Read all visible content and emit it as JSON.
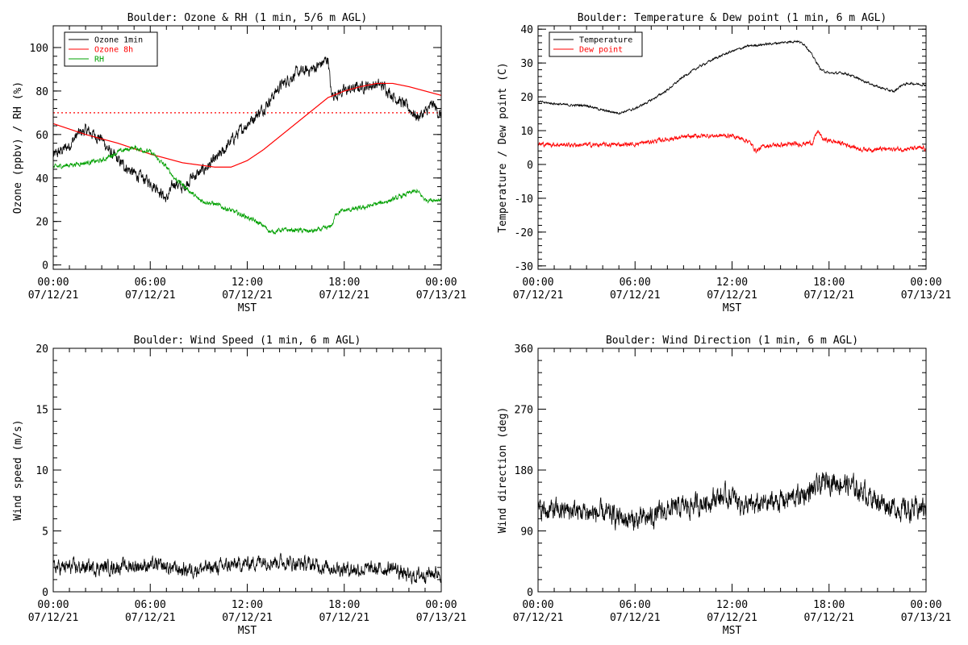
{
  "chart_data": [
    {
      "type": "line",
      "title": "Boulder: Ozone & RH (1 min, 5/6 m AGL)",
      "xlabel": "MST",
      "ylabel": "Ozone (ppbv) / RH (%)",
      "xlim": [
        "07/12/21 00:00",
        "07/13/21 00:00"
      ],
      "ylim": [
        -2,
        110
      ],
      "yticks": [
        0,
        20,
        40,
        60,
        80,
        100
      ],
      "xtick_labels": [
        [
          "00:00",
          "07/12/21"
        ],
        [
          "06:00",
          "07/12/21"
        ],
        [
          "12:00",
          "07/12/21"
        ],
        [
          "18:00",
          "07/12/21"
        ],
        [
          "00:00",
          "07/13/21"
        ]
      ],
      "legend": "top-left",
      "reference_line": {
        "y": 70,
        "style": "dotted",
        "color": "#ff0000"
      },
      "series": [
        {
          "name": "Ozone 1min",
          "color": "#000000",
          "noise": 2.0,
          "points": [
            [
              0,
              50
            ],
            [
              1,
              55
            ],
            [
              1.5,
              60
            ],
            [
              2,
              62
            ],
            [
              2.5,
              60
            ],
            [
              3,
              58
            ],
            [
              3.5,
              52
            ],
            [
              4,
              48
            ],
            [
              5,
              42
            ],
            [
              6,
              38
            ],
            [
              6.5,
              35
            ],
            [
              7,
              30
            ],
            [
              7.5,
              38
            ],
            [
              8,
              35
            ],
            [
              8.5,
              40
            ],
            [
              9,
              42
            ],
            [
              9.5,
              45
            ],
            [
              10,
              48
            ],
            [
              10.5,
              52
            ],
            [
              11,
              57
            ],
            [
              12,
              65
            ],
            [
              13,
              72
            ],
            [
              14,
              82
            ],
            [
              15,
              88
            ],
            [
              16,
              90
            ],
            [
              16.5,
              92
            ],
            [
              17,
              95
            ],
            [
              17.2,
              78
            ],
            [
              18,
              80
            ],
            [
              19,
              82
            ],
            [
              20,
              83
            ],
            [
              20.5,
              82
            ],
            [
              21,
              78
            ],
            [
              22,
              72
            ],
            [
              22.5,
              68
            ],
            [
              23,
              70
            ],
            [
              23.5,
              74
            ],
            [
              24,
              68
            ]
          ]
        },
        {
          "name": "Ozone 8h",
          "color": "#ff0000",
          "noise": 0,
          "points": [
            [
              0,
              65
            ],
            [
              2,
              60
            ],
            [
              4,
              56
            ],
            [
              6,
              51
            ],
            [
              8,
              47
            ],
            [
              10,
              45
            ],
            [
              11,
              45
            ],
            [
              12,
              48
            ],
            [
              13,
              53
            ],
            [
              14,
              59
            ],
            [
              15,
              65
            ],
            [
              16,
              71
            ],
            [
              17,
              77
            ],
            [
              18,
              80
            ],
            [
              19,
              82
            ],
            [
              20,
              83.5
            ],
            [
              21,
              83.5
            ],
            [
              22,
              82
            ],
            [
              23,
              80
            ],
            [
              24,
              78
            ]
          ]
        },
        {
          "name": "RH",
          "color": "#00a000",
          "noise": 0.8,
          "points": [
            [
              0,
              45
            ],
            [
              2,
              47
            ],
            [
              3,
              48
            ],
            [
              4,
              52
            ],
            [
              5,
              54
            ],
            [
              5.5,
              53
            ],
            [
              6,
              52
            ],
            [
              7,
              45
            ],
            [
              7.5,
              40
            ],
            [
              8,
              37
            ],
            [
              9,
              30
            ],
            [
              10,
              28
            ],
            [
              11,
              25
            ],
            [
              12,
              22
            ],
            [
              13,
              18
            ],
            [
              13.5,
              15
            ],
            [
              14,
              16
            ],
            [
              15,
              16
            ],
            [
              16,
              15.5
            ],
            [
              17,
              17
            ],
            [
              17.3,
              19
            ],
            [
              17.5,
              24
            ],
            [
              18,
              25
            ],
            [
              19,
              26
            ],
            [
              20,
              28
            ],
            [
              21,
              30
            ],
            [
              22,
              33
            ],
            [
              22.5,
              34
            ],
            [
              23,
              30
            ],
            [
              24,
              30
            ]
          ]
        }
      ]
    },
    {
      "type": "line",
      "title": "Boulder: Temperature & Dew point (1 min, 6 m AGL)",
      "xlabel": "MST",
      "ylabel": "Temperature / Dew point (C)",
      "xlim": [
        "07/12/21 00:00",
        "07/13/21 00:00"
      ],
      "ylim": [
        -31,
        41
      ],
      "yticks": [
        -30,
        -20,
        -10,
        0,
        10,
        20,
        30,
        40
      ],
      "xtick_labels": [
        [
          "00:00",
          "07/12/21"
        ],
        [
          "06:00",
          "07/12/21"
        ],
        [
          "12:00",
          "07/12/21"
        ],
        [
          "18:00",
          "07/12/21"
        ],
        [
          "00:00",
          "07/13/21"
        ]
      ],
      "legend": "top-left",
      "series": [
        {
          "name": "Temperature",
          "color": "#000000",
          "noise": 0.25,
          "points": [
            [
              0,
              18.5
            ],
            [
              2,
              17.5
            ],
            [
              3,
              17.5
            ],
            [
              4,
              16
            ],
            [
              5,
              15.2
            ],
            [
              6,
              16.5
            ],
            [
              7,
              19
            ],
            [
              8,
              22
            ],
            [
              9,
              26
            ],
            [
              10,
              29
            ],
            [
              11,
              31.5
            ],
            [
              12,
              33.5
            ],
            [
              13,
              35
            ],
            [
              14,
              35.5
            ],
            [
              15,
              36
            ],
            [
              16,
              36.5
            ],
            [
              16.5,
              35.5
            ],
            [
              17,
              32
            ],
            [
              17.5,
              28
            ],
            [
              18,
              27
            ],
            [
              19,
              27
            ],
            [
              20,
              25
            ],
            [
              21,
              23
            ],
            [
              22,
              21.5
            ],
            [
              22.5,
              23.5
            ],
            [
              23,
              24
            ],
            [
              24,
              23.5
            ]
          ]
        },
        {
          "name": "Dew point",
          "color": "#ff0000",
          "noise": 0.5,
          "points": [
            [
              0,
              6
            ],
            [
              2,
              5.8
            ],
            [
              4,
              5.8
            ],
            [
              6,
              6
            ],
            [
              8,
              7.5
            ],
            [
              10,
              8.5
            ],
            [
              12,
              8.5
            ],
            [
              13,
              7
            ],
            [
              13.5,
              4
            ],
            [
              14,
              5.5
            ],
            [
              16,
              6
            ],
            [
              17,
              6.5
            ],
            [
              17.3,
              10
            ],
            [
              17.6,
              7.5
            ],
            [
              19,
              6
            ],
            [
              20,
              4.5
            ],
            [
              22,
              4.5
            ],
            [
              24,
              4.8
            ]
          ]
        }
      ]
    },
    {
      "type": "line",
      "title": "Boulder: Wind Speed (1 min, 6 m AGL)",
      "xlabel": "MST",
      "ylabel": "Wind speed (m/s)",
      "xlim": [
        "07/12/21 00:00",
        "07/13/21 00:00"
      ],
      "ylim": [
        0,
        20
      ],
      "yticks": [
        0,
        5,
        10,
        15,
        20
      ],
      "xtick_labels": [
        [
          "00:00",
          "07/12/21"
        ],
        [
          "06:00",
          "07/12/21"
        ],
        [
          "12:00",
          "07/12/21"
        ],
        [
          "18:00",
          "07/12/21"
        ],
        [
          "00:00",
          "07/13/21"
        ]
      ],
      "series": [
        {
          "name": "",
          "color": "#000000",
          "noise": 0.45,
          "points": [
            [
              0,
              2
            ],
            [
              3,
              2
            ],
            [
              6,
              2.2
            ],
            [
              8,
              1.8
            ],
            [
              10,
              2
            ],
            [
              12,
              2.3
            ],
            [
              13,
              2.6
            ],
            [
              14,
              2.5
            ],
            [
              16,
              2.2
            ],
            [
              18,
              1.9
            ],
            [
              20,
              1.8
            ],
            [
              21,
              2
            ],
            [
              22,
              1.2
            ],
            [
              23,
              1.5
            ],
            [
              24,
              1.6
            ]
          ]
        }
      ]
    },
    {
      "type": "line",
      "title": "Boulder: Wind Direction (1 min, 6 m AGL)",
      "xlabel": "MST",
      "ylabel": "Wind direction (deg)",
      "xlim": [
        "07/12/21 00:00",
        "07/13/21 00:00"
      ],
      "ylim": [
        0,
        360
      ],
      "yticks": [
        0,
        90,
        180,
        270,
        360
      ],
      "xtick_labels": [
        [
          "00:00",
          "07/12/21"
        ],
        [
          "06:00",
          "07/12/21"
        ],
        [
          "12:00",
          "07/12/21"
        ],
        [
          "18:00",
          "07/12/21"
        ],
        [
          "00:00",
          "07/13/21"
        ]
      ],
      "series": [
        {
          "name": "",
          "color": "#000000",
          "noise": 12,
          "points": [
            [
              0,
              120
            ],
            [
              2,
              120
            ],
            [
              4,
              115
            ],
            [
              5,
              110
            ],
            [
              6,
              105
            ],
            [
              7,
              110
            ],
            [
              8,
              120
            ],
            [
              9,
              125
            ],
            [
              10,
              130
            ],
            [
              11,
              140
            ],
            [
              12,
              140
            ],
            [
              13,
              125
            ],
            [
              14,
              130
            ],
            [
              15,
              135
            ],
            [
              16,
              140
            ],
            [
              17,
              150
            ],
            [
              18,
              165
            ],
            [
              19,
              160
            ],
            [
              20,
              150
            ],
            [
              21,
              135
            ],
            [
              22,
              125
            ],
            [
              23,
              120
            ],
            [
              24,
              125
            ]
          ]
        }
      ]
    }
  ]
}
